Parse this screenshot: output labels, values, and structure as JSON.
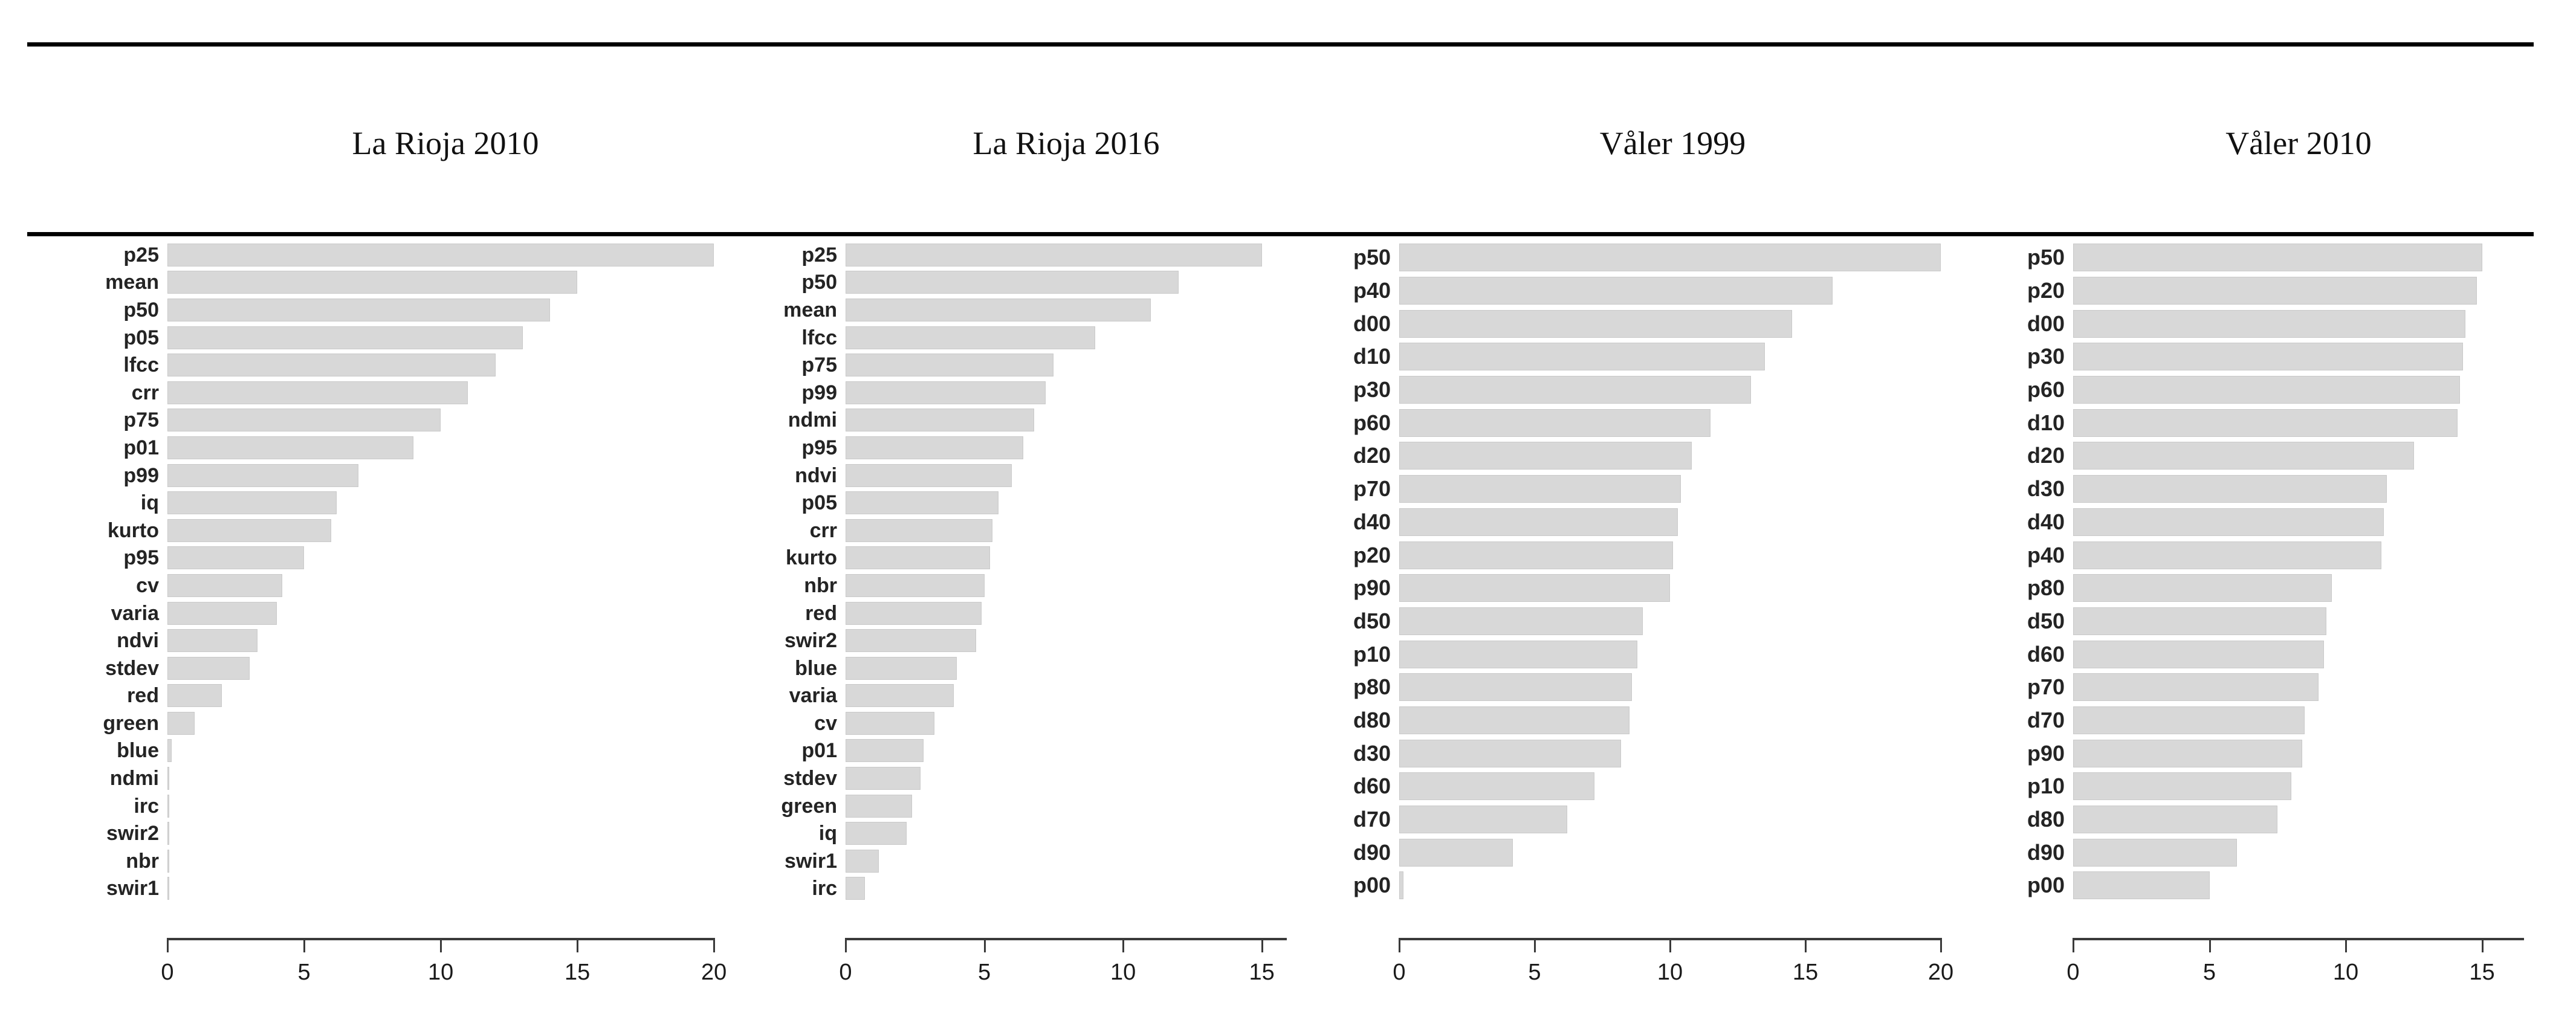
{
  "figure": {
    "background": "#ffffff",
    "rule_color": "#000000",
    "bar_fill": "#d8d8d8",
    "bar_border": "#c9c9c9",
    "axis_color": "#3a3a3a",
    "text_color": "#242424"
  },
  "chart_data": [
    {
      "type": "bar",
      "orientation": "horizontal",
      "title": "La Rioja 2010",
      "categories": [
        "p25",
        "mean",
        "p50",
        "p05",
        "lfcc",
        "crr",
        "p75",
        "p01",
        "p99",
        "iq",
        "kurto",
        "p95",
        "cv",
        "varia",
        "ndvi",
        "stdev",
        "red",
        "green",
        "blue",
        "ndmi",
        "irc",
        "swir2",
        "nbr",
        "swir1"
      ],
      "values": [
        20,
        15,
        14,
        13,
        12,
        11,
        10,
        9,
        7,
        6.2,
        6,
        5,
        4.2,
        4,
        3.3,
        3,
        2,
        1,
        0.15,
        0.07,
        0.07,
        0.07,
        0.07,
        0.07
      ],
      "xlabel": "",
      "ylabel": "",
      "xlim": [
        0,
        20
      ],
      "xticks": [
        0,
        5,
        10,
        15,
        20
      ],
      "grid": false,
      "legend": "none"
    },
    {
      "type": "bar",
      "orientation": "horizontal",
      "title": "La Rioja 2016",
      "categories": [
        "p25",
        "p50",
        "mean",
        "lfcc",
        "p75",
        "p99",
        "ndmi",
        "p95",
        "ndvi",
        "p05",
        "crr",
        "kurto",
        "nbr",
        "red",
        "swir2",
        "blue",
        "varia",
        "cv",
        "p01",
        "stdev",
        "green",
        "iq",
        "swir1",
        "irc"
      ],
      "values": [
        15,
        12,
        11,
        9,
        7.5,
        7.2,
        6.8,
        6.4,
        6.0,
        5.5,
        5.3,
        5.2,
        5.0,
        4.9,
        4.7,
        4.0,
        3.9,
        3.2,
        2.8,
        2.7,
        2.4,
        2.2,
        1.2,
        0.7
      ],
      "xlabel": "",
      "ylabel": "",
      "xlim": [
        0,
        15
      ],
      "xticks": [
        0,
        5,
        10,
        15
      ],
      "grid": false,
      "legend": "none"
    },
    {
      "type": "bar",
      "orientation": "horizontal",
      "title": "Våler 1999",
      "categories": [
        "p50",
        "p40",
        "d00",
        "d10",
        "p30",
        "p60",
        "d20",
        "p70",
        "d40",
        "p20",
        "p90",
        "d50",
        "p10",
        "p80",
        "d80",
        "d30",
        "d60",
        "d70",
        "d90",
        "p00"
      ],
      "values": [
        20,
        16,
        14.5,
        13.5,
        13,
        11.5,
        10.8,
        10.4,
        10.3,
        10.1,
        10,
        9,
        8.8,
        8.6,
        8.5,
        8.2,
        7.2,
        6.2,
        4.2,
        0.15
      ],
      "xlabel": "",
      "ylabel": "",
      "xlim": [
        0,
        20
      ],
      "xticks": [
        0,
        5,
        10,
        15,
        20
      ],
      "grid": false,
      "legend": "none"
    },
    {
      "type": "bar",
      "orientation": "horizontal",
      "title": "Våler 2010",
      "categories": [
        "p50",
        "p20",
        "d00",
        "p30",
        "p60",
        "d10",
        "d20",
        "d30",
        "d40",
        "p40",
        "p80",
        "d50",
        "d60",
        "p70",
        "d70",
        "p90",
        "p10",
        "d80",
        "d90",
        "p00"
      ],
      "values": [
        15,
        14.8,
        14.4,
        14.3,
        14.2,
        14.1,
        12.5,
        11.5,
        11.4,
        11.3,
        9.5,
        9.3,
        9.2,
        9.0,
        8.5,
        8.4,
        8.0,
        7.5,
        6.0,
        5.0
      ],
      "xlabel": "",
      "ylabel": "",
      "xlim": [
        0,
        15
      ],
      "xticks": [
        0,
        5,
        10,
        15
      ],
      "grid": false,
      "legend": "none"
    }
  ]
}
